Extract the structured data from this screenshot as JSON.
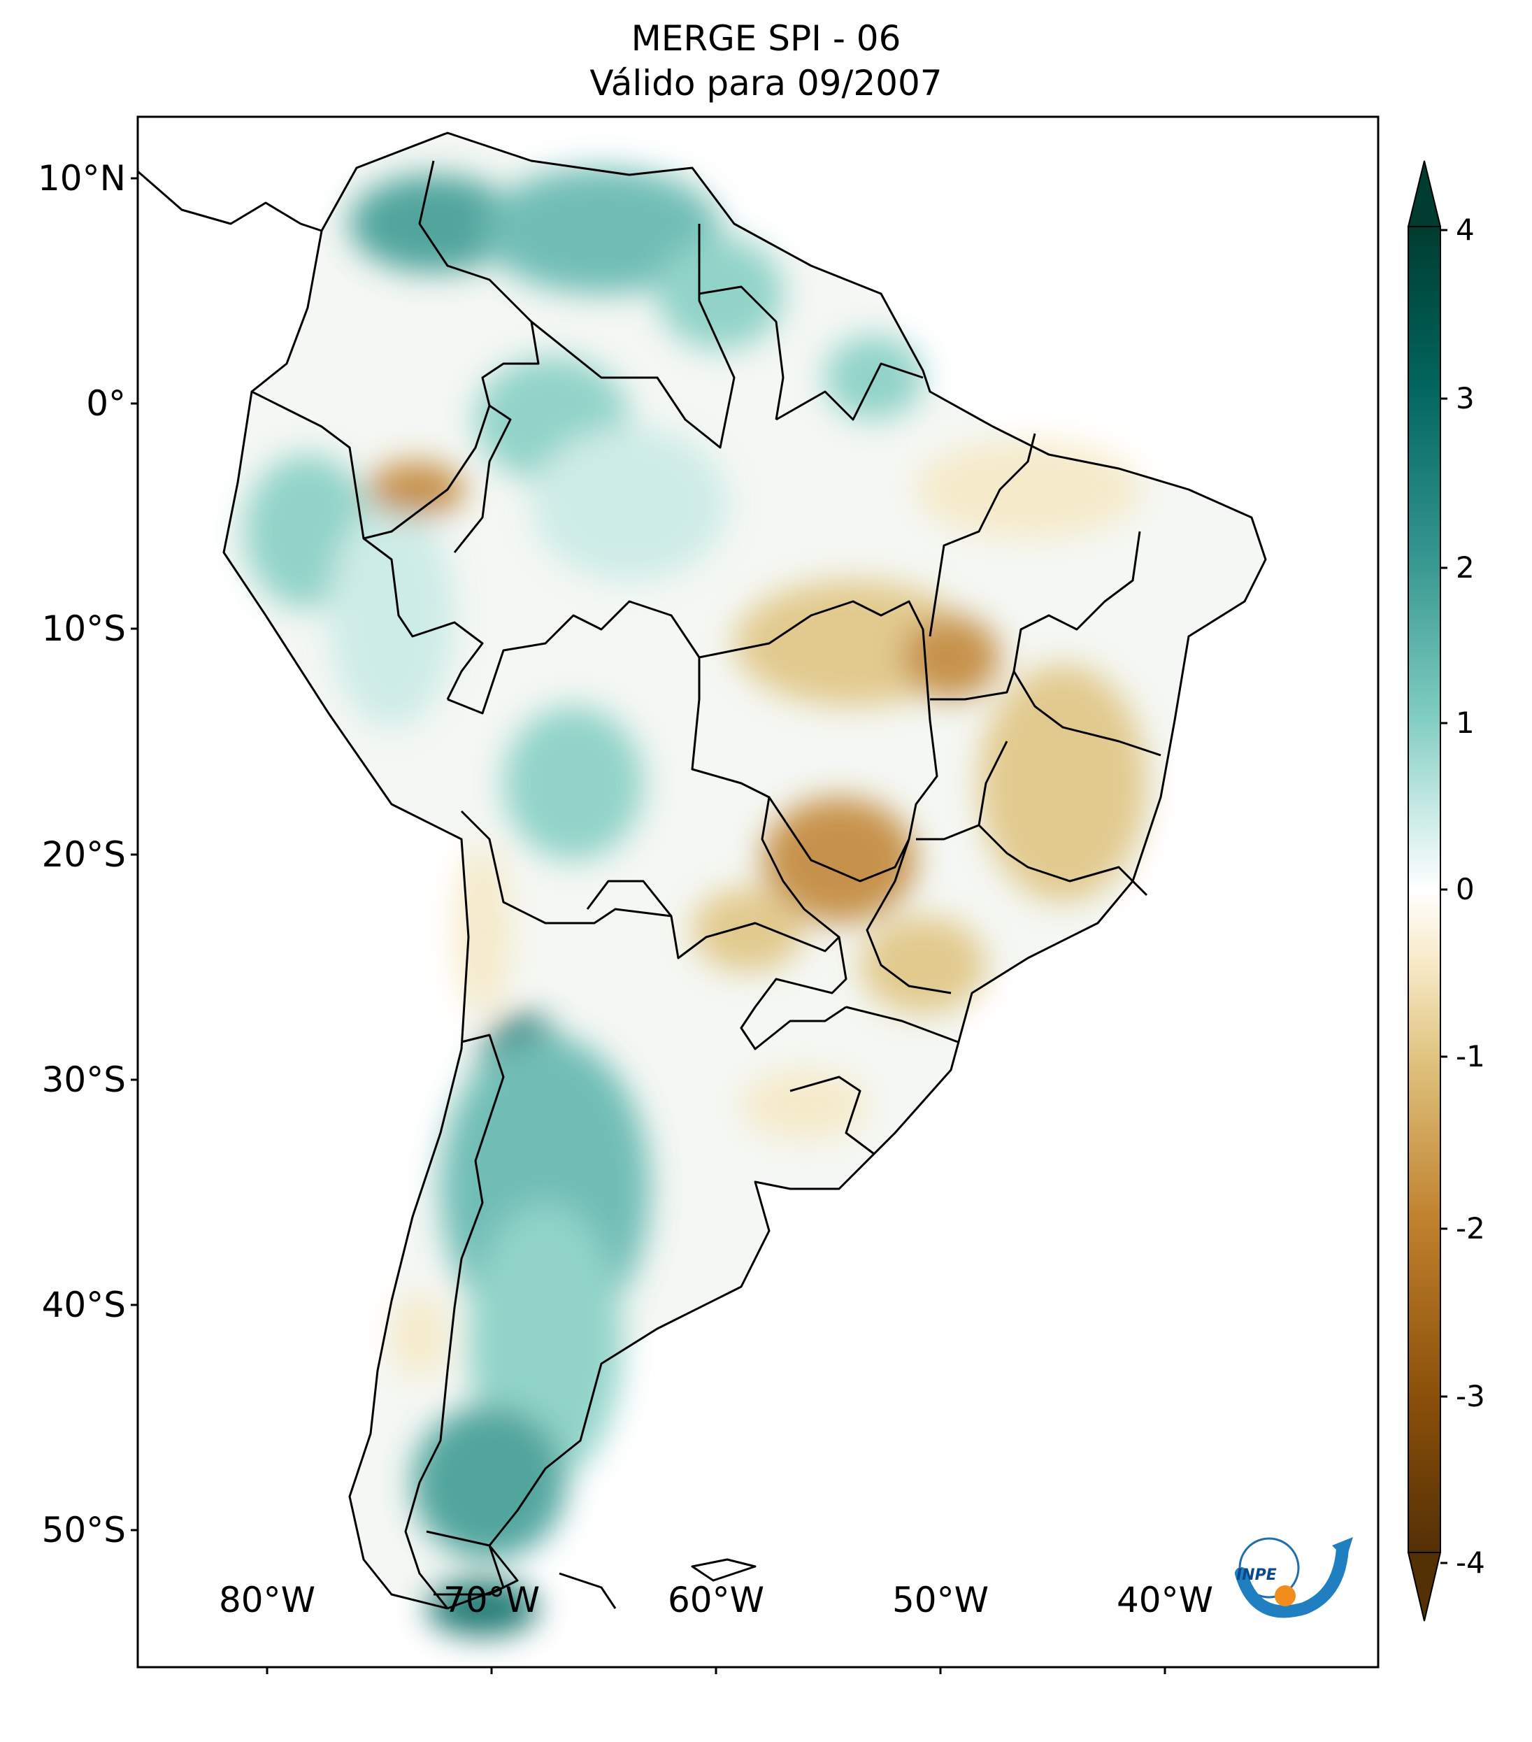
{
  "title": {
    "line1": "MERGE   SPI - 06",
    "line2": "Válido para 09/2007"
  },
  "axes": {
    "lat_ticks": [
      "10°N",
      "0°",
      "10°S",
      "20°S",
      "30°S",
      "40°S",
      "50°S"
    ],
    "lon_ticks": [
      "80°W",
      "70°W",
      "60°W",
      "50°W",
      "40°W"
    ]
  },
  "colorbar": {
    "ticks": [
      "4",
      "3",
      "2",
      "1",
      "0",
      "-1",
      "-2",
      "-3",
      "-4"
    ],
    "colors": {
      "wet_max": "#003c30",
      "wet": "#35978f",
      "wet_light": "#c7eae5",
      "neutral": "#ffffff",
      "dry_light": "#f6e8c3",
      "dry": "#bf812d",
      "dry_max": "#543005"
    }
  },
  "logo": {
    "text": "INPE"
  }
}
